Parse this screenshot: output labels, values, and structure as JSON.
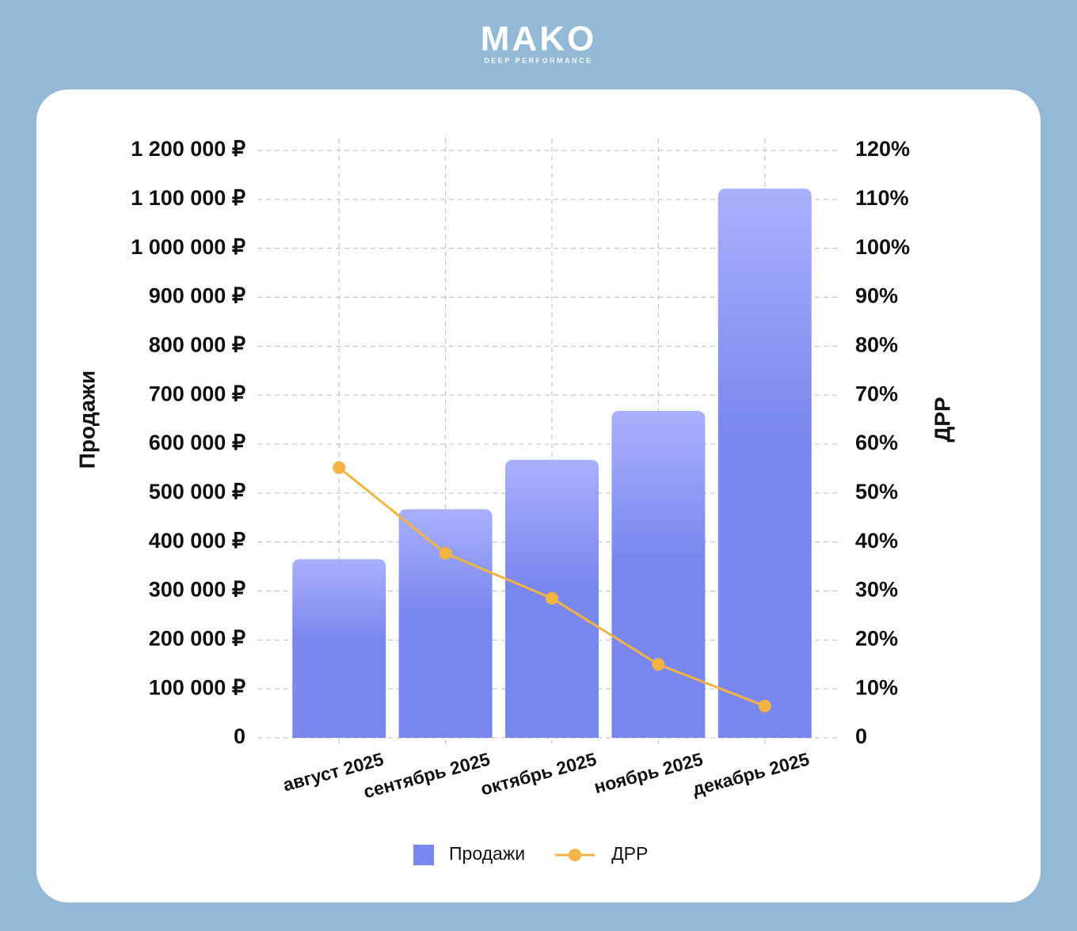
{
  "header": {
    "logo": "MAKO",
    "tagline": "DEEP PERFORMANCE"
  },
  "chart_data": {
    "type": "bar",
    "categories": [
      "август 2025",
      "сентябрь 2025",
      "октябрь 2025",
      "ноябрь 2025",
      "декабрь 2025"
    ],
    "series": [
      {
        "name": "Продажи",
        "type": "bar",
        "color": "#7a87ee",
        "values": [
          365000,
          467000,
          568000,
          668000,
          1122000
        ]
      },
      {
        "name": "ДРР",
        "type": "line",
        "axis": "y2",
        "color": "#f4b443",
        "values": [
          55.2,
          37.7,
          28.5,
          15.0,
          6.5
        ]
      }
    ],
    "y_label": "Продажи",
    "y2_label": "ДРР",
    "ylim": [
      0,
      1200000
    ],
    "yticks": [
      0,
      {
        "value": 100000,
        "label": "100 000 ₽"
      },
      {
        "value": 200000,
        "label": "200 000 ₽"
      },
      {
        "value": 300000,
        "label": "300 000 ₽"
      },
      {
        "value": 400000,
        "label": "400 000 ₽"
      },
      {
        "value": 500000,
        "label": "500 000 ₽"
      },
      {
        "value": 600000,
        "label": "600 000 ₽"
      },
      {
        "value": 700000,
        "label": "700 000 ₽"
      },
      {
        "value": 800000,
        "label": "800 000 ₽"
      },
      {
        "value": 900000,
        "label": "900 000 ₽"
      },
      {
        "value": 1000000,
        "label": "1 000 000 ₽"
      },
      {
        "value": 1100000,
        "label": "1 100 000 ₽"
      },
      {
        "value": 1200000,
        "label": "1 200 000 ₽"
      }
    ],
    "y2lim": [
      0,
      120
    ],
    "y2ticks": [
      0,
      {
        "value": 10,
        "label": "10%"
      },
      {
        "value": 20,
        "label": "20%"
      },
      {
        "value": 30,
        "label": "30%"
      },
      {
        "value": 40,
        "label": "40%"
      },
      {
        "value": 50,
        "label": "50%"
      },
      {
        "value": 60,
        "label": "60%"
      },
      {
        "value": 70,
        "label": "70%"
      },
      {
        "value": 80,
        "label": "80%"
      },
      {
        "value": 90,
        "label": "90%"
      },
      {
        "value": 100,
        "label": "100%"
      },
      {
        "value": 110,
        "label": "110%"
      },
      {
        "value": 120,
        "label": "120%"
      }
    ],
    "grid": true,
    "legend": "bottom"
  }
}
